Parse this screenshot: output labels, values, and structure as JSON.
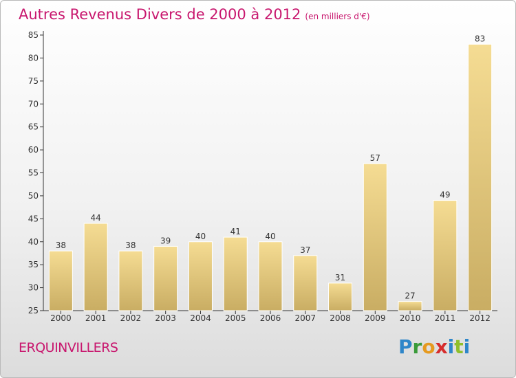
{
  "header": {
    "title": "Autres Revenus Divers de 2000 à 2012",
    "subtitle": "(en milliers d'€)"
  },
  "footer": {
    "place": "ERQUINVILLERS",
    "logo_letters": [
      "P",
      "r",
      "o",
      "x",
      "i",
      "t",
      "i"
    ]
  },
  "colors": {
    "title": "#c8176e",
    "bar_light": "#f5dc93",
    "bar_dark": "#c9ad63"
  },
  "chart_data": {
    "type": "bar",
    "title": "Autres Revenus Divers de 2000 à 2012",
    "subtitle": "(en milliers d'€)",
    "categories": [
      "2000",
      "2001",
      "2002",
      "2003",
      "2004",
      "2005",
      "2006",
      "2007",
      "2008",
      "2009",
      "2010",
      "2011",
      "2012"
    ],
    "values": [
      38,
      44,
      38,
      39,
      40,
      41,
      40,
      37,
      31,
      57,
      27,
      49,
      83
    ],
    "ylim": [
      25,
      85
    ],
    "yticks": [
      25,
      30,
      35,
      40,
      45,
      50,
      55,
      60,
      65,
      70,
      75,
      80,
      85
    ],
    "grid": false,
    "legend": "none"
  }
}
